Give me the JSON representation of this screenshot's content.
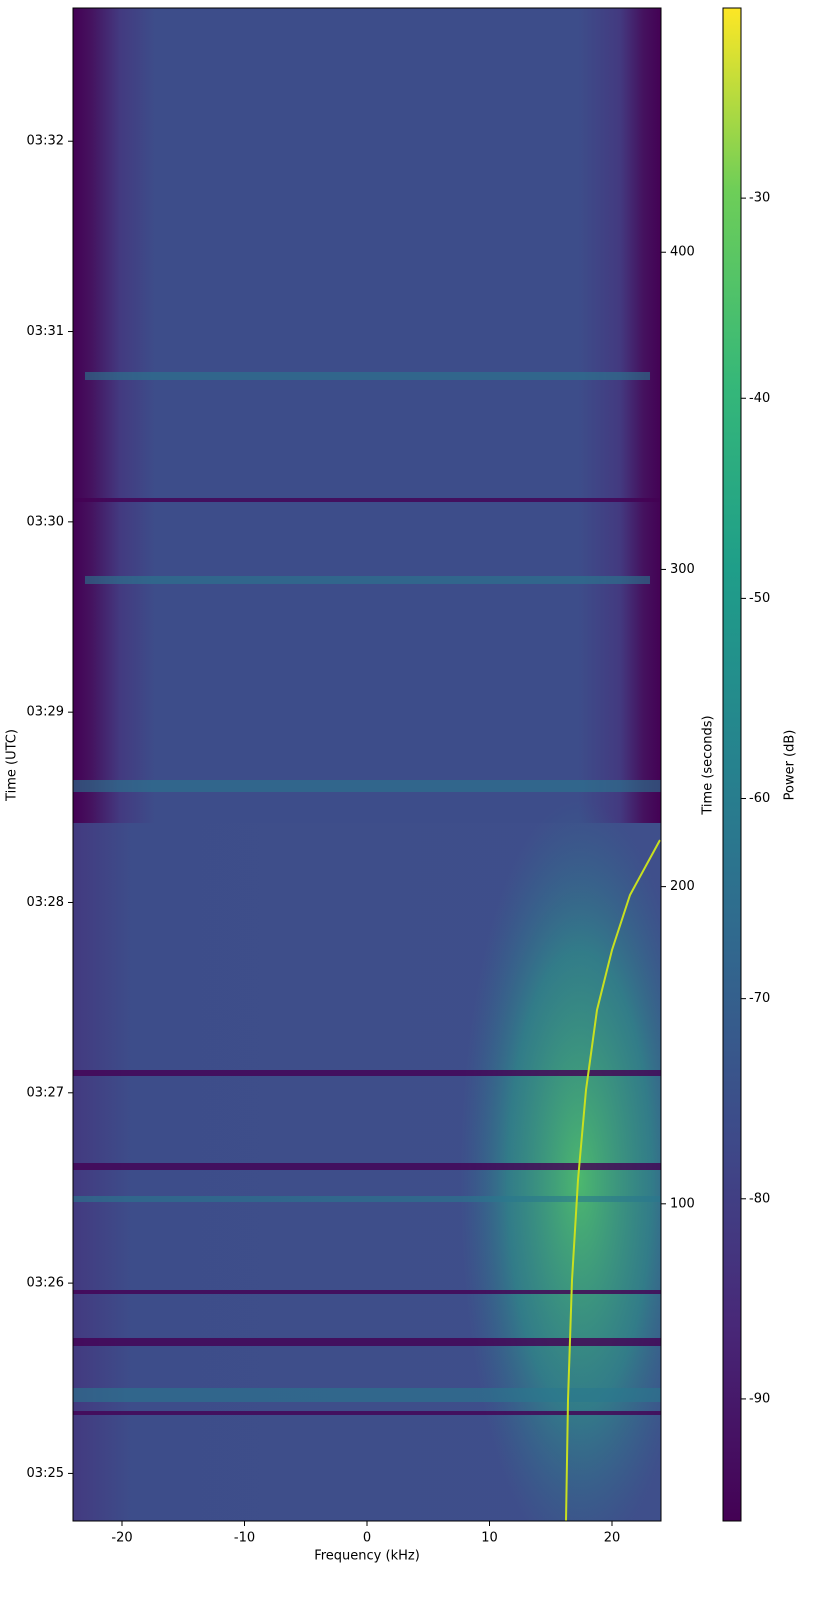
{
  "chart_data": {
    "type": "spectrogram",
    "xlabel": "Frequency (kHz)",
    "ylabel": "Time (UTC)",
    "y2label": "Time (seconds)",
    "colorbar_label": "Power (dB)",
    "colormap": "viridis",
    "xlim": [
      -24,
      24
    ],
    "xticks": [
      -20,
      -10,
      0,
      10,
      20
    ],
    "ylim": [
      "03:24:45",
      "03:32:42"
    ],
    "yticks": [
      "03:25",
      "03:26",
      "03:27",
      "03:28",
      "03:29",
      "03:30",
      "03:31",
      "03:32"
    ],
    "y2lim": [
      0,
      477
    ],
    "y2ticks": [
      100,
      200,
      300,
      400
    ],
    "clim": [
      -96.1,
      -20.5
    ],
    "cticks": [
      -30,
      -40,
      -50,
      -60,
      -70,
      -80,
      -90
    ]
  }
}
